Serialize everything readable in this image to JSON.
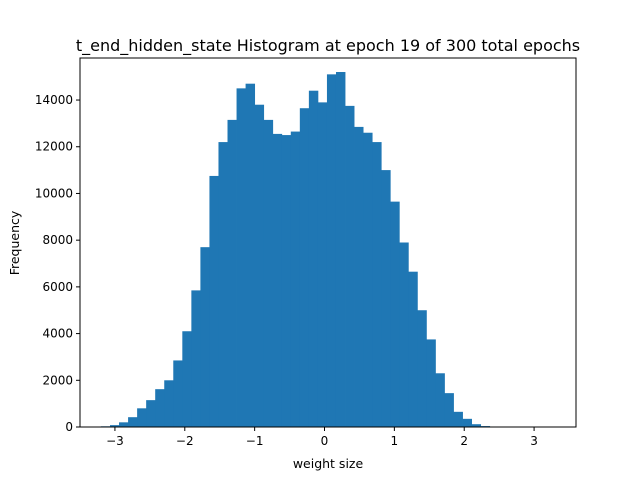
{
  "chart_data": {
    "type": "bar",
    "title": "t_end_hidden_state Histogram at epoch 19 of 300 total epochs",
    "xlabel": "weight size",
    "ylabel": "Frequency",
    "xlim": [
      -3.5,
      3.6
    ],
    "ylim": [
      0,
      15800
    ],
    "x_ticks": [
      -3,
      -2,
      -1,
      0,
      1,
      2,
      3
    ],
    "x_tick_labels": [
      "−3",
      "−2",
      "−1",
      "0",
      "1",
      "2",
      "3"
    ],
    "y_ticks": [
      0,
      2000,
      4000,
      6000,
      8000,
      10000,
      12000,
      14000
    ],
    "y_tick_labels": [
      "0",
      "2000",
      "4000",
      "6000",
      "8000",
      "10000",
      "12000",
      "14000"
    ],
    "bin_start": -3.2,
    "bin_width": 0.1294,
    "values": [
      30,
      80,
      200,
      420,
      800,
      1150,
      1620,
      2000,
      2850,
      4100,
      5850,
      7700,
      10750,
      12200,
      13150,
      14500,
      14700,
      13800,
      13150,
      12550,
      12500,
      12650,
      13650,
      14400,
      13900,
      15100,
      15200,
      13750,
      12850,
      12600,
      12200,
      11000,
      9650,
      7900,
      6650,
      5000,
      3750,
      2300,
      1450,
      650,
      350,
      120,
      40
    ],
    "bar_color": "#1f77b4",
    "grid": false,
    "legend": "none"
  }
}
